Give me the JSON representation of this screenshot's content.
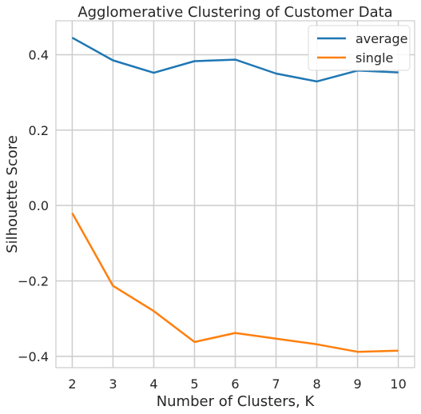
{
  "chart_data": {
    "type": "line",
    "title": "Agglomerative Clustering of Customer Data",
    "xlabel": "Number of Clusters, K",
    "ylabel": "Silhouette Score",
    "x": [
      2,
      3,
      4,
      5,
      6,
      7,
      8,
      9,
      10
    ],
    "xticks": [
      "2",
      "3",
      "4",
      "5",
      "6",
      "7",
      "8",
      "9",
      "10"
    ],
    "yticks": [
      {
        "value": 0.4,
        "label": "0.4"
      },
      {
        "value": 0.2,
        "label": "0.2"
      },
      {
        "value": 0.0,
        "label": "0.0"
      },
      {
        "value": -0.2,
        "label": "−0.2"
      },
      {
        "value": -0.4,
        "label": "−0.4"
      }
    ],
    "xlim": [
      1.6,
      10.4
    ],
    "ylim": [
      -0.43,
      0.49
    ],
    "grid": true,
    "legend_position": "top-right",
    "series": [
      {
        "name": "average",
        "color": "#1f77b4",
        "values": [
          0.445,
          0.385,
          0.352,
          0.383,
          0.387,
          0.35,
          0.329,
          0.358,
          0.353
        ]
      },
      {
        "name": "single",
        "color": "#ff7f0e",
        "values": [
          -0.02,
          -0.213,
          -0.28,
          -0.362,
          -0.338,
          -0.353,
          -0.368,
          -0.388,
          -0.385
        ]
      }
    ]
  }
}
